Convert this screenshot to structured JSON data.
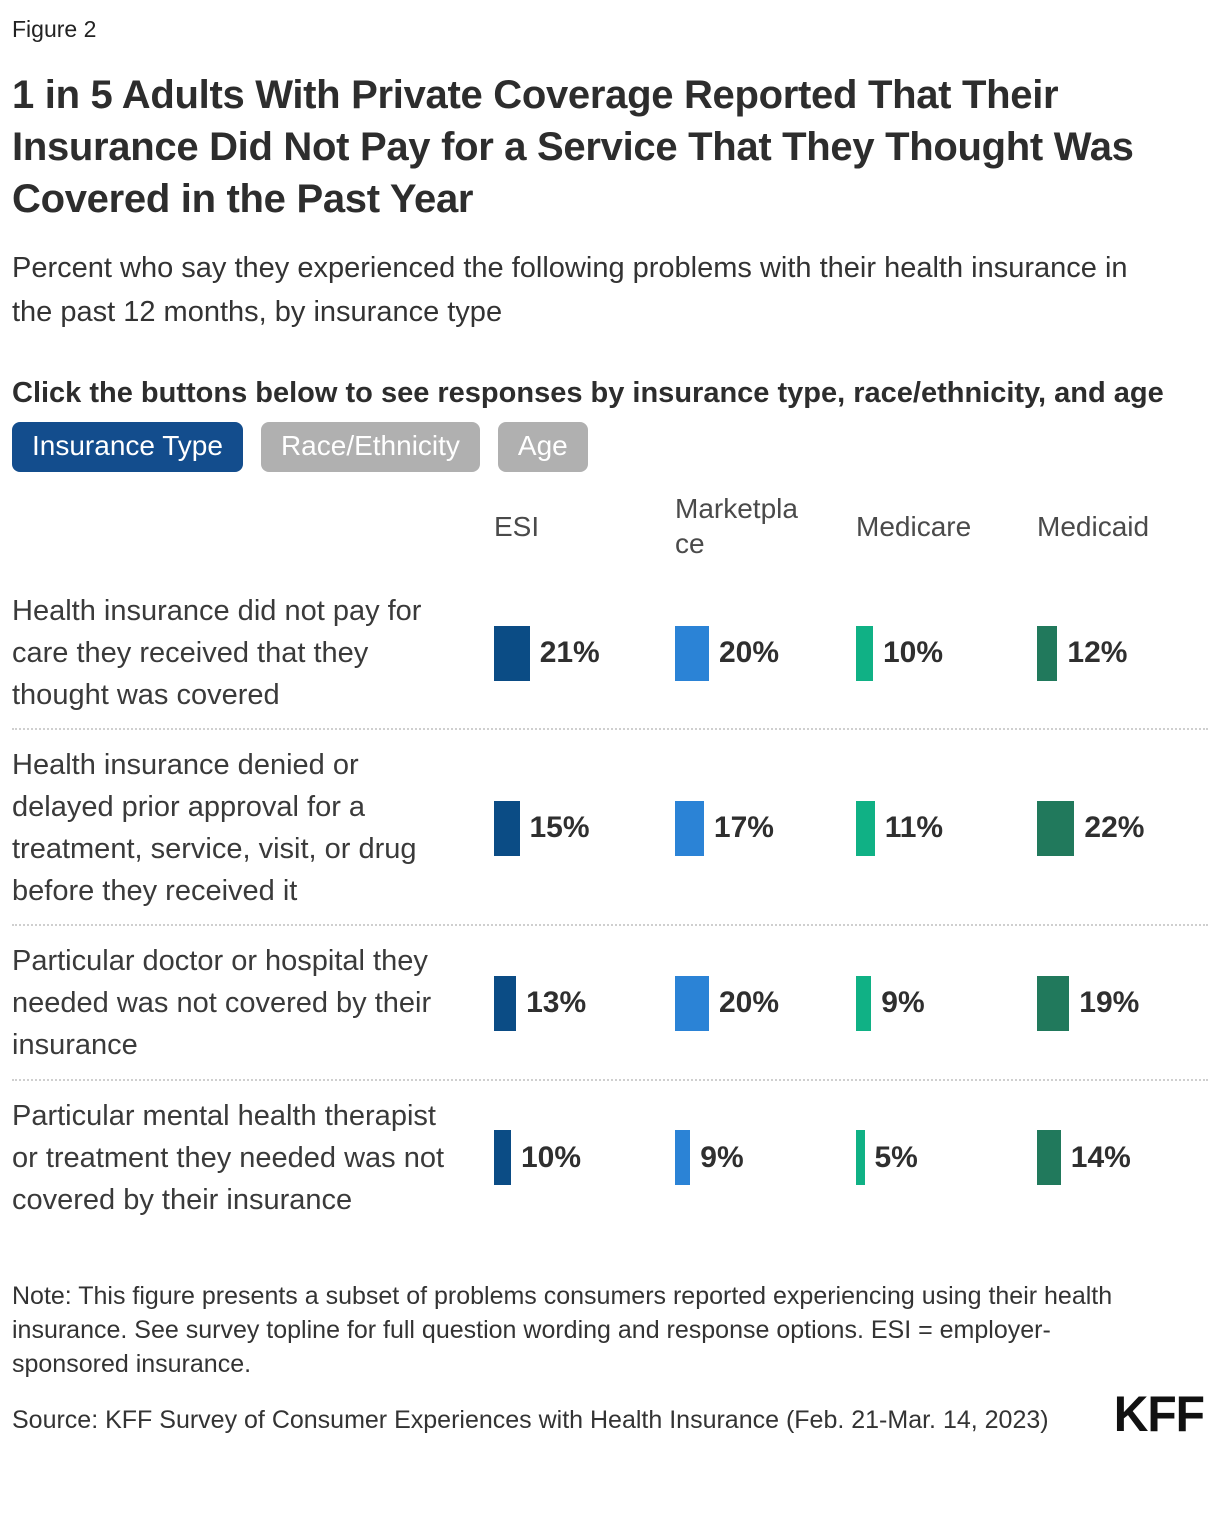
{
  "figure_label": "Figure 2",
  "title": "1 in 5 Adults With Private Coverage Reported That Their Insurance Did Not Pay for a Service That They Thought Was Covered in the Past Year",
  "subtitle": "Percent who say they experienced the following problems with their health insurance in the past 12 months, by insurance type",
  "instruction": "Click the buttons below to see responses by insurance type, race/ethnicity, and age",
  "buttons": [
    {
      "label": "Insurance Type",
      "active": true
    },
    {
      "label": "Race/Ethnicity",
      "active": false
    },
    {
      "label": "Age",
      "active": false
    }
  ],
  "accent_colors": {
    "active_button": "#134d8d",
    "inactive_button": "#b0b0b0",
    "button_text": "#ffffff"
  },
  "chart_data": {
    "type": "bar",
    "unit": "percent",
    "value_suffix": "%",
    "categories": [
      "ESI",
      "Marketplace",
      "Medicare",
      "Medicaid"
    ],
    "category_colors": [
      "#0b4c85",
      "#2b83d6",
      "#10b185",
      "#21795c"
    ],
    "rows": [
      {
        "label": "Health insurance did not pay for care they received that they thought was covered",
        "values": [
          21,
          20,
          10,
          12
        ]
      },
      {
        "label": "Health insurance denied or delayed prior approval for a treatment, service, visit, or drug before they received it",
        "values": [
          15,
          17,
          11,
          22
        ]
      },
      {
        "label": "Particular doctor or hospital they needed was not covered by their insurance",
        "values": [
          13,
          20,
          9,
          19
        ]
      },
      {
        "label": "Particular mental health therapist or treatment they needed was not covered by their insurance",
        "values": [
          10,
          9,
          5,
          14
        ]
      }
    ]
  },
  "note": "Note: This figure presents a subset of problems consumers reported experiencing using their health insurance. See survey topline for full question wording and response options. ESI = employer-sponsored insurance.",
  "source": "Source: KFF Survey of Consumer Experiences with Health Insurance (Feb. 21-Mar. 14, 2023)",
  "logo": "KFF"
}
